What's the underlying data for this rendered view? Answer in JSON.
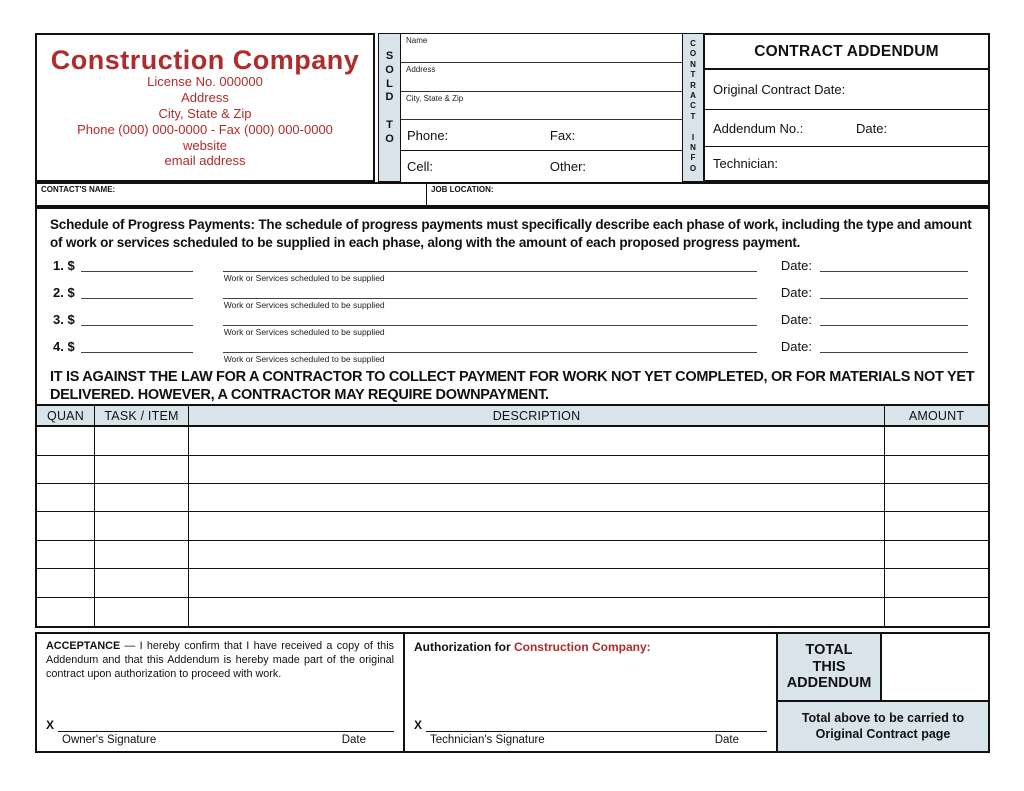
{
  "colors": {
    "accent_red": "#b02c2c",
    "panel_blue": "#d9e3ea",
    "border": "#111111"
  },
  "company": {
    "name": "Construction Company",
    "license": "License No. 000000",
    "address": "Address",
    "city_state_zip": "City, State & Zip",
    "phone_fax": "Phone (000) 000-0000   -   Fax (000) 000-0000",
    "website": "website",
    "email": "email address"
  },
  "sold_to": {
    "strip_label": "S\nO\nL\nD\n\nT\nO",
    "name_label": "Name",
    "address_label": "Address",
    "city_label": "City, State & Zip",
    "phone_label": "Phone:",
    "fax_label": "Fax:",
    "cell_label": "Cell:",
    "other_label": "Other:"
  },
  "contract_info": {
    "strip_label": "C\nO\nN\nT\nR\nA\nC\nT\n\nI\nN\nF\nO",
    "title": "CONTRACT ADDENDUM",
    "original_date_label": "Original Contract Date:",
    "addendum_no_label": "Addendum No.:",
    "date_label": "Date:",
    "technician_label": "Technician:"
  },
  "contact_row": {
    "contacts_name_label": "CONTACT'S NAME:",
    "job_location_label": "JOB LOCATION:"
  },
  "schedule": {
    "intro": "Schedule of Progress Payments: The schedule of progress payments must specifically describe each phase of work, including the type and amount of work or services scheduled to be supplied in each phase, along with the amount of each proposed progress payment.",
    "rows": [
      {
        "num": "1. $",
        "caption": "Work or Services scheduled to be supplied",
        "date_label": "Date:"
      },
      {
        "num": "2. $",
        "caption": "Work or Services scheduled to be supplied",
        "date_label": "Date:"
      },
      {
        "num": "3. $",
        "caption": "Work or Services scheduled to be supplied",
        "date_label": "Date:"
      },
      {
        "num": "4. $",
        "caption": "Work or Services scheduled to be supplied",
        "date_label": "Date:"
      }
    ],
    "legal": "IT IS AGAINST THE LAW FOR A CONTRACTOR TO COLLECT PAYMENT FOR WORK NOT YET COMPLETED, OR FOR MATERIALS NOT YET DELIVERED. HOWEVER, A CONTRACTOR MAY REQUIRE DOWNPAYMENT."
  },
  "table": {
    "headers": [
      "QUAN",
      "TASK / ITEM",
      "DESCRIPTION",
      "AMOUNT"
    ],
    "row_count": 7
  },
  "footer": {
    "acceptance_title": "ACCEPTANCE",
    "acceptance_text": " — I hereby confirm that I have received a copy of this Addendum and that this Addendum is hereby made part of the original contract upon authorization to proceed with work.",
    "authorization_prefix": "Authorization for ",
    "authorization_company": "Construction Company:",
    "x_label": "X",
    "owners_signature_label": "Owner's Signature",
    "technicians_signature_label": "Technician's Signature",
    "date_label": "Date",
    "total_label": "TOTAL\nTHIS\nADDENDUM",
    "carry_note": "Total above to be carried to Original Contract page"
  }
}
